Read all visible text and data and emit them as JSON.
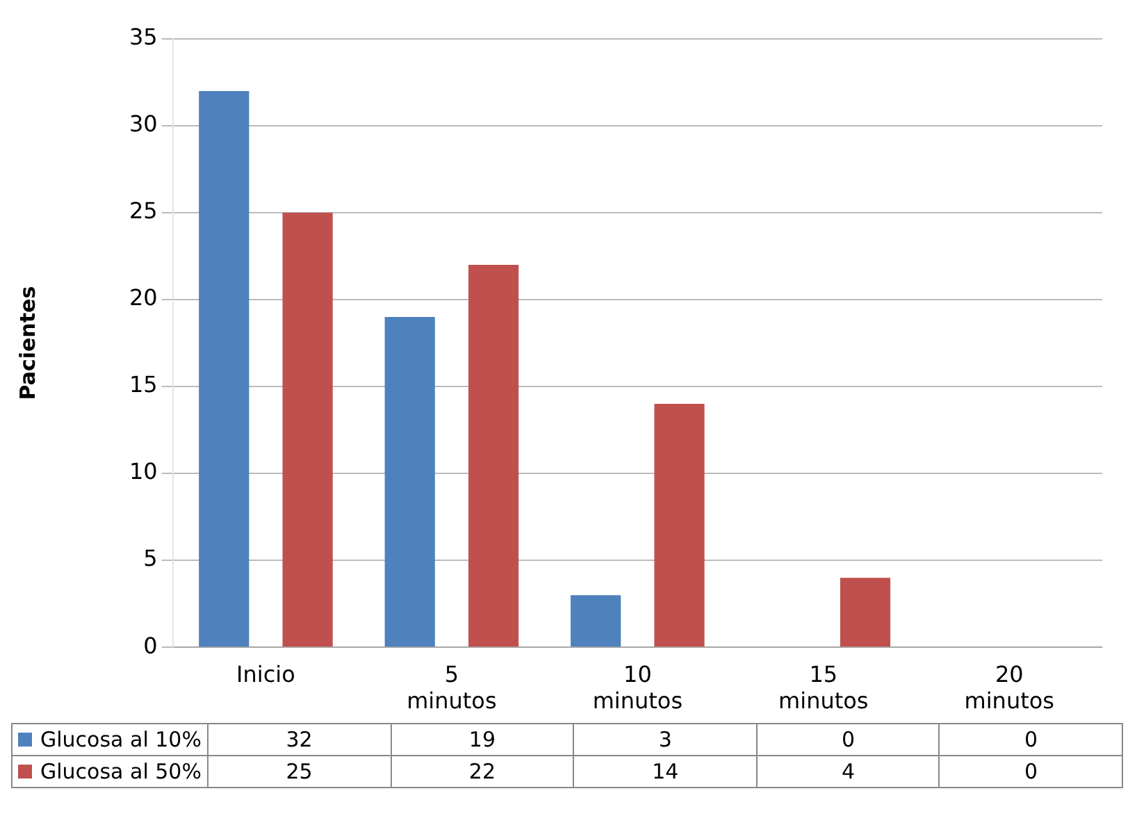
{
  "chart_data": {
    "type": "bar",
    "ylabel": "Pacientes",
    "categories": [
      "Inicio",
      "5 minutos",
      "10 minutos",
      "15 minutos",
      "20 minutos"
    ],
    "series": [
      {
        "name": "Glucosa al 10%",
        "color": "#4f81bd",
        "values": [
          32,
          19,
          3,
          0,
          0
        ]
      },
      {
        "name": "Glucosa al 50%",
        "color": "#c0504d",
        "values": [
          25,
          22,
          14,
          4,
          0
        ]
      }
    ],
    "ylim": [
      0,
      35
    ],
    "yticks": [
      0,
      5,
      10,
      15,
      20,
      25,
      30,
      35
    ],
    "grid": "y",
    "legend": "bottom",
    "data_labels": true
  }
}
